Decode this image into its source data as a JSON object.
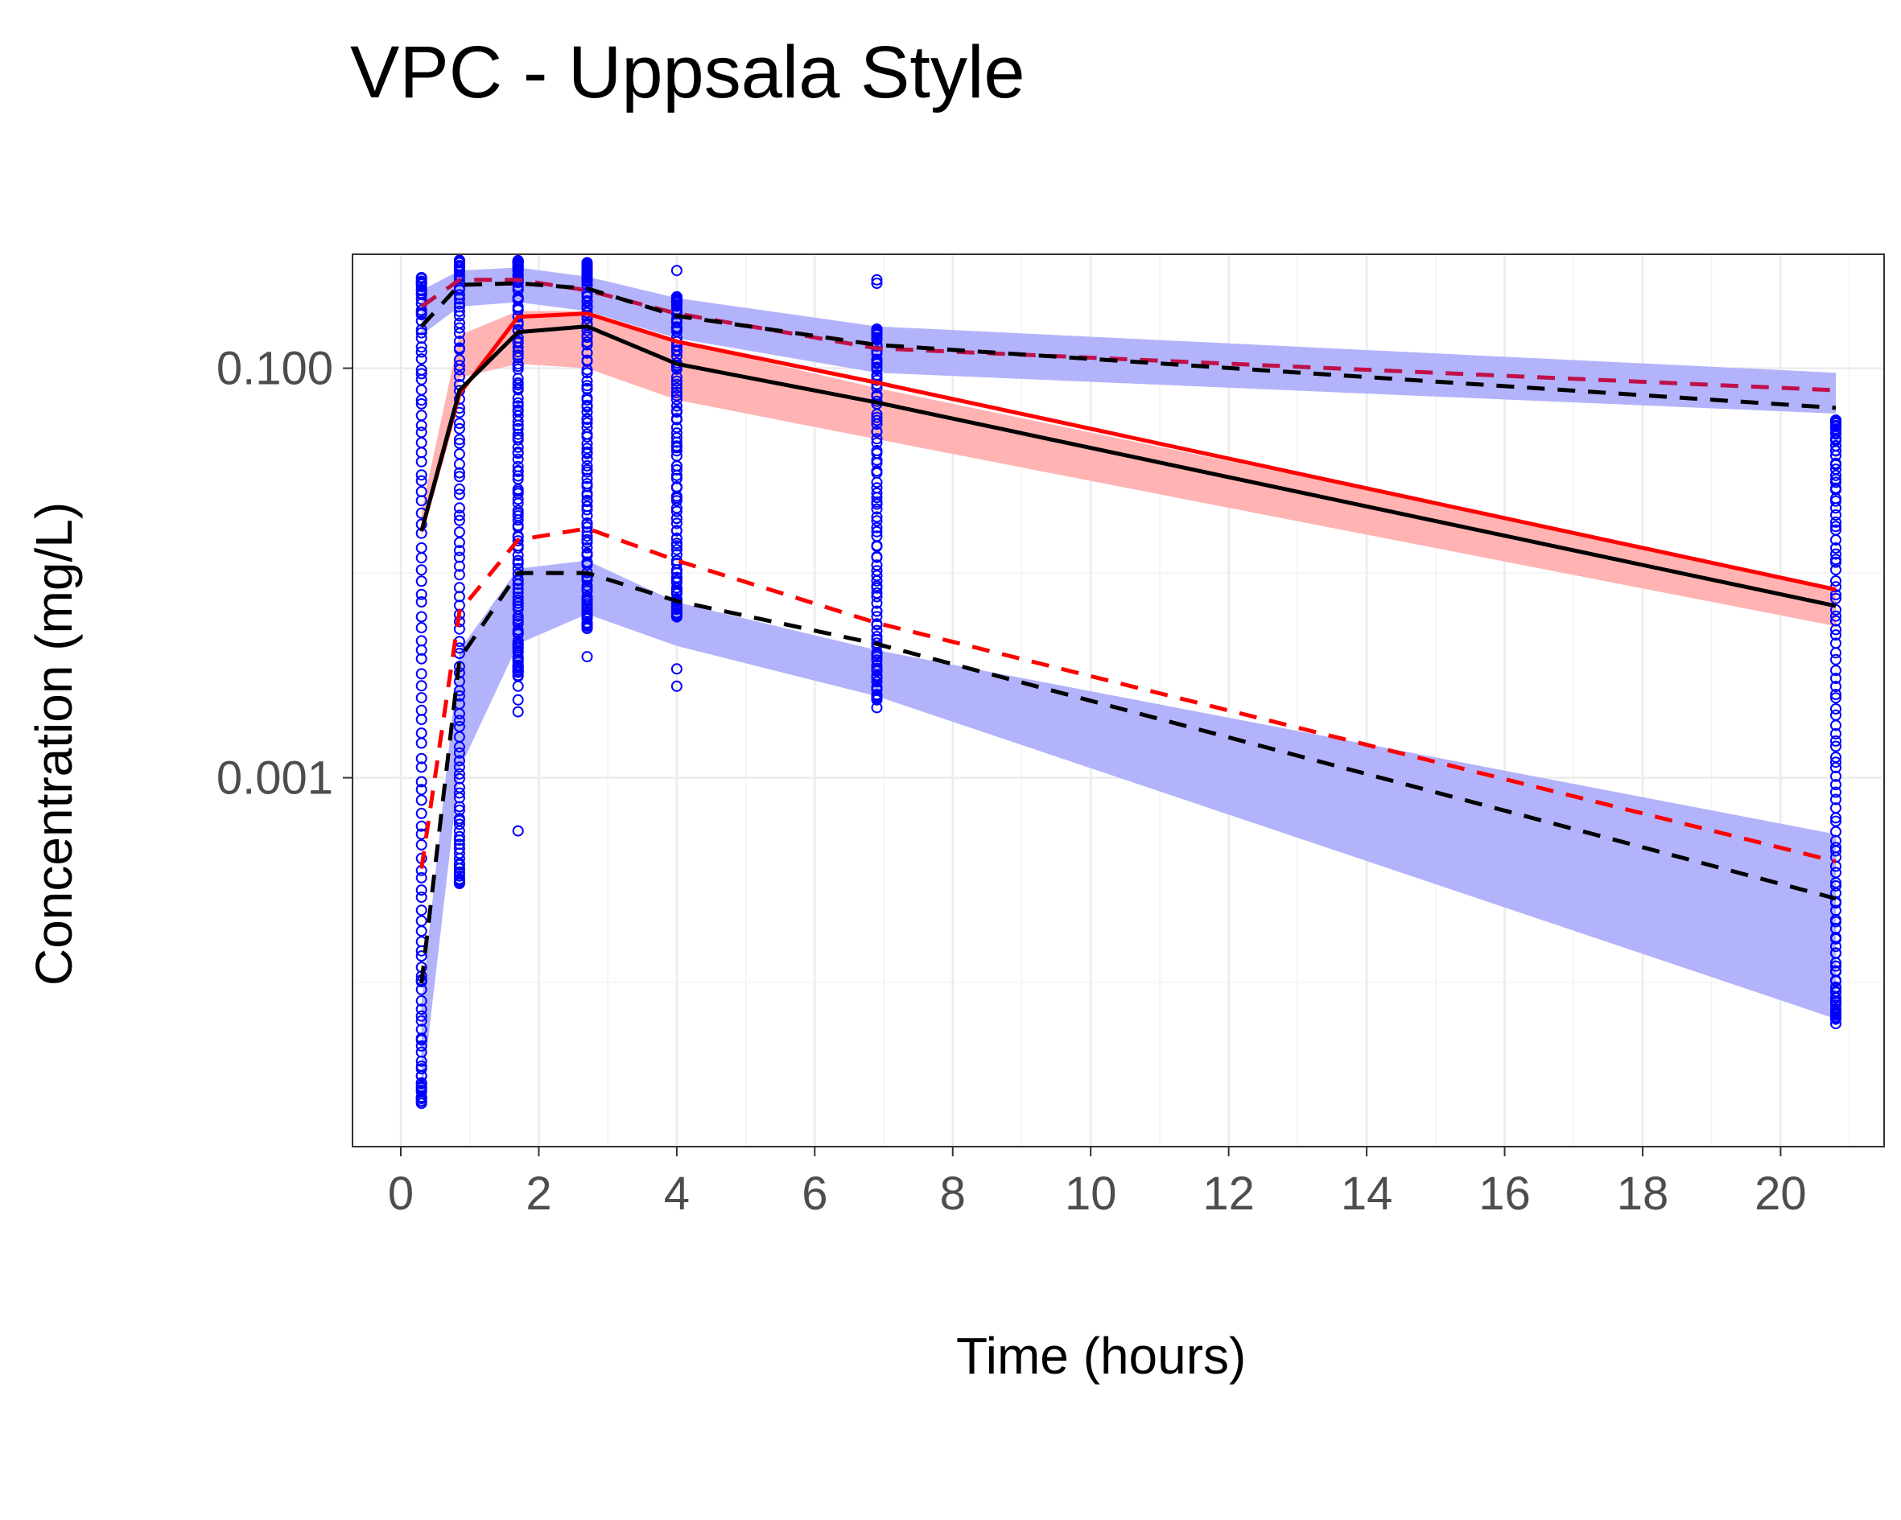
{
  "title": "VPC - Uppsala Style",
  "chart_data": {
    "type": "line",
    "title": "VPC - Uppsala Style",
    "xlabel": "Time (hours)",
    "ylabel": "Concentration (mg/L)",
    "x_scale": "linear",
    "y_scale": "log10",
    "xlim": [
      -0.7,
      21.5
    ],
    "ylim": [
      1.58e-05,
      0.36
    ],
    "x_ticks": [
      0,
      2,
      4,
      6,
      8,
      10,
      12,
      14,
      16,
      18,
      20
    ],
    "x_tick_labels": [
      "0",
      "2",
      "4",
      "6",
      "8",
      "10",
      "12",
      "14",
      "16",
      "18",
      "20"
    ],
    "y_ticks": [
      0.1,
      0.001
    ],
    "y_tick_labels": [
      "0.100",
      "0.001"
    ],
    "grid": true,
    "legend": "none",
    "colors": {
      "observed_points": "#0000ff",
      "pi_band": "#b3b3fb",
      "median_band": "#ffb3b3",
      "observed_median": "#ff0000",
      "observed_percentile": "#c0104a",
      "simulated_line": "#000000"
    },
    "bins_x": [
      0.3,
      0.85,
      1.7,
      2.7,
      4.0,
      6.9,
      20.8
    ],
    "bands": [
      {
        "name": "sim_pi_upper_ci",
        "lower": [
          0.145,
          0.2,
          0.21,
          0.19,
          0.14,
          0.095,
          0.06
        ],
        "upper": [
          0.24,
          0.3,
          0.31,
          0.28,
          0.22,
          0.16,
          0.095
        ]
      },
      {
        "name": "sim_median_ci",
        "lower": [
          0.015,
          0.09,
          0.105,
          0.1,
          0.07,
          0.045,
          0.0055
        ],
        "upper": [
          0.02,
          0.145,
          0.19,
          0.19,
          0.135,
          0.08,
          0.0085
        ]
      },
      {
        "name": "sim_pi_lower_ci",
        "lower": [
          2.75e-05,
          0.0011,
          0.0045,
          0.0063,
          0.0044,
          0.0025,
          6.65e-05
        ],
        "upper": [
          8e-05,
          0.0042,
          0.0105,
          0.0115,
          0.0072,
          0.0042,
          0.00053
        ]
      }
    ],
    "series": [
      {
        "style": "dashed",
        "color": "#c0104a",
        "values": [
          0.2,
          0.27,
          0.27,
          0.24,
          0.185,
          0.125,
          0.078
        ]
      },
      {
        "style": "dashed",
        "color": "#000000",
        "values": [
          0.16,
          0.255,
          0.26,
          0.245,
          0.18,
          0.13,
          0.064
        ]
      },
      {
        "style": "solid",
        "color": "#ff0000",
        "values": [
          0.016,
          0.075,
          0.178,
          0.185,
          0.135,
          0.085,
          0.0083
        ]
      },
      {
        "style": "solid",
        "color": "#000000",
        "values": [
          0.016,
          0.078,
          0.15,
          0.16,
          0.105,
          0.068,
          0.0069
        ]
      },
      {
        "style": "dashed",
        "color": "#ff0000",
        "values": [
          0.00036,
          0.0065,
          0.0145,
          0.0165,
          0.0115,
          0.0057,
          0.00039
        ]
      },
      {
        "style": "dashed",
        "color": "#000000",
        "values": [
          9.9e-05,
          0.0038,
          0.01,
          0.01,
          0.0073,
          0.0045,
          0.000257
        ]
      }
    ],
    "observations": [
      {
        "x": 0.3,
        "y_min": 2.6e-05,
        "y_max": 0.27,
        "count": 110,
        "extra": [
          3.06e-05,
          0.000102,
          0.000103
        ]
      },
      {
        "x": 0.85,
        "y_min": 0.00031,
        "y_max": 0.33,
        "count": 110,
        "extra": [
          0.00032,
          0.31,
          0.28
        ]
      },
      {
        "x": 1.7,
        "y_min": 0.0032,
        "y_max": 0.34,
        "count": 150,
        "extra": [
          0.00055,
          0.0024,
          0.0021,
          0.0028,
          0.3,
          0.32
        ]
      },
      {
        "x": 2.7,
        "y_min": 0.0055,
        "y_max": 0.32,
        "count": 130,
        "extra": [
          0.0039,
          0.3,
          0.29
        ]
      },
      {
        "x": 4.0,
        "y_min": 0.0063,
        "y_max": 0.22,
        "count": 110,
        "extra": [
          0.0034,
          0.0028,
          0.3
        ]
      },
      {
        "x": 6.9,
        "y_min": 0.0024,
        "y_max": 0.155,
        "count": 110,
        "extra": [
          0.0022,
          0.26,
          0.27
        ]
      },
      {
        "x": 20.8,
        "y_min": 6.7e-05,
        "y_max": 0.056,
        "count": 120,
        "extra": [
          6.3e-05,
          8.4e-05,
          9.5e-05
        ]
      }
    ]
  }
}
